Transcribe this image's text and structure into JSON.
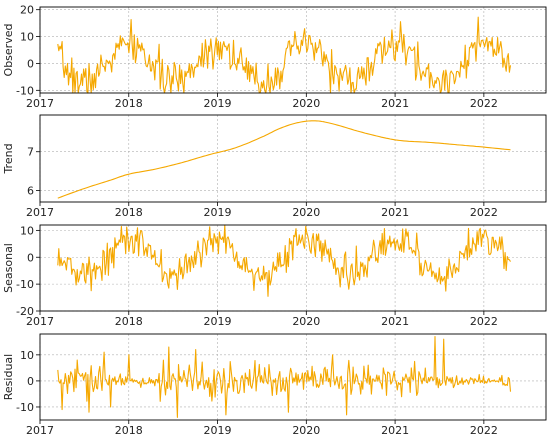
{
  "chart_data": [
    {
      "type": "line",
      "ylabel": "Observed",
      "ylim": [
        -11,
        21
      ],
      "yticks": [
        -10,
        0,
        10,
        20
      ],
      "xlim": [
        2017.0,
        2022.7
      ],
      "xticks": [
        "2017",
        "2018",
        "2019",
        "2020",
        "2021",
        "2022"
      ],
      "grid": true,
      "series": [
        {
          "x_range": [
            2017.2,
            2022.3
          ],
          "pattern": "seasonal plus noise",
          "seasonal_amplitude": 7,
          "noise_sd": 3.5,
          "seed": 7,
          "values_sampled": [
            9,
            1,
            -3,
            3,
            8,
            13,
            12,
            3,
            -2,
            4,
            12,
            16,
            8,
            0,
            -2,
            6,
            14,
            15,
            6,
            -3,
            -4,
            4,
            13,
            10,
            2,
            -3,
            2,
            10,
            14,
            6
          ]
        }
      ]
    },
    {
      "type": "line",
      "ylabel": "Trend",
      "ylim": [
        5.7,
        7.95
      ],
      "yticks": [
        6,
        7
      ],
      "xlim": [
        2017.0,
        2022.7
      ],
      "xticks": [
        "2017",
        "2018",
        "2019",
        "2020",
        "2021",
        "2022"
      ],
      "grid": true,
      "series": [
        {
          "x": [
            2017.2,
            2017.5,
            2017.8,
            2018.0,
            2018.3,
            2018.6,
            2018.9,
            2019.2,
            2019.5,
            2019.7,
            2019.9,
            2020.1,
            2020.3,
            2020.6,
            2020.9,
            2021.1,
            2021.4,
            2021.7,
            2022.0,
            2022.3
          ],
          "y": [
            5.8,
            6.05,
            6.27,
            6.42,
            6.55,
            6.72,
            6.92,
            7.1,
            7.38,
            7.6,
            7.75,
            7.8,
            7.72,
            7.52,
            7.35,
            7.28,
            7.24,
            7.18,
            7.12,
            7.05
          ]
        }
      ]
    },
    {
      "type": "line",
      "ylabel": "Seasonal",
      "ylim": [
        -20,
        12
      ],
      "yticks": [
        -20,
        -10,
        0,
        10
      ],
      "xlim": [
        2017.0,
        2022.7
      ],
      "xticks": [
        "2017",
        "2018",
        "2019",
        "2020",
        "2021",
        "2022"
      ],
      "grid": true,
      "series": [
        {
          "x_range": [
            2017.2,
            2022.3
          ],
          "pattern": "seasonal plus noise",
          "seasonal_amplitude": 7,
          "noise_sd": 3.2,
          "seed": 13,
          "values_sampled": [
            3,
            -5,
            -10,
            -6,
            2,
            7,
            5,
            -3,
            -8,
            -6,
            3,
            7,
            6,
            -4,
            -9,
            -7,
            1,
            7,
            6,
            -2,
            -9,
            -8,
            2,
            7,
            6,
            -5,
            -12,
            -6,
            3,
            6
          ]
        }
      ]
    },
    {
      "type": "line",
      "ylabel": "Residual",
      "ylim": [
        -15,
        18
      ],
      "yticks": [
        -10,
        0,
        10
      ],
      "xlim": [
        2017.0,
        2022.7
      ],
      "xticks": [
        "2017",
        "2018",
        "2019",
        "2020",
        "2021",
        "2022"
      ],
      "grid": true,
      "series": [
        {
          "x_range": [
            2017.2,
            2022.3
          ],
          "pattern": "noise around zero with spikes",
          "noise_sd": 3,
          "seed": 29,
          "spikes": [
            [
              2017.25,
              -11
            ],
            [
              2017.42,
              8
            ],
            [
              2017.55,
              -12
            ],
            [
              2017.72,
              11
            ],
            [
              2017.8,
              -10
            ],
            [
              2018.0,
              10
            ],
            [
              2018.45,
              13
            ],
            [
              2018.55,
              -14
            ],
            [
              2018.75,
              12
            ],
            [
              2019.1,
              -13
            ],
            [
              2019.8,
              -12
            ],
            [
              2020.3,
              10
            ],
            [
              2020.45,
              -13
            ],
            [
              2021.45,
              17
            ],
            [
              2021.55,
              16
            ]
          ]
        }
      ]
    }
  ],
  "colors": {
    "series": "#f5a800",
    "grid": "#b0b0b0",
    "frame": "#000000"
  }
}
